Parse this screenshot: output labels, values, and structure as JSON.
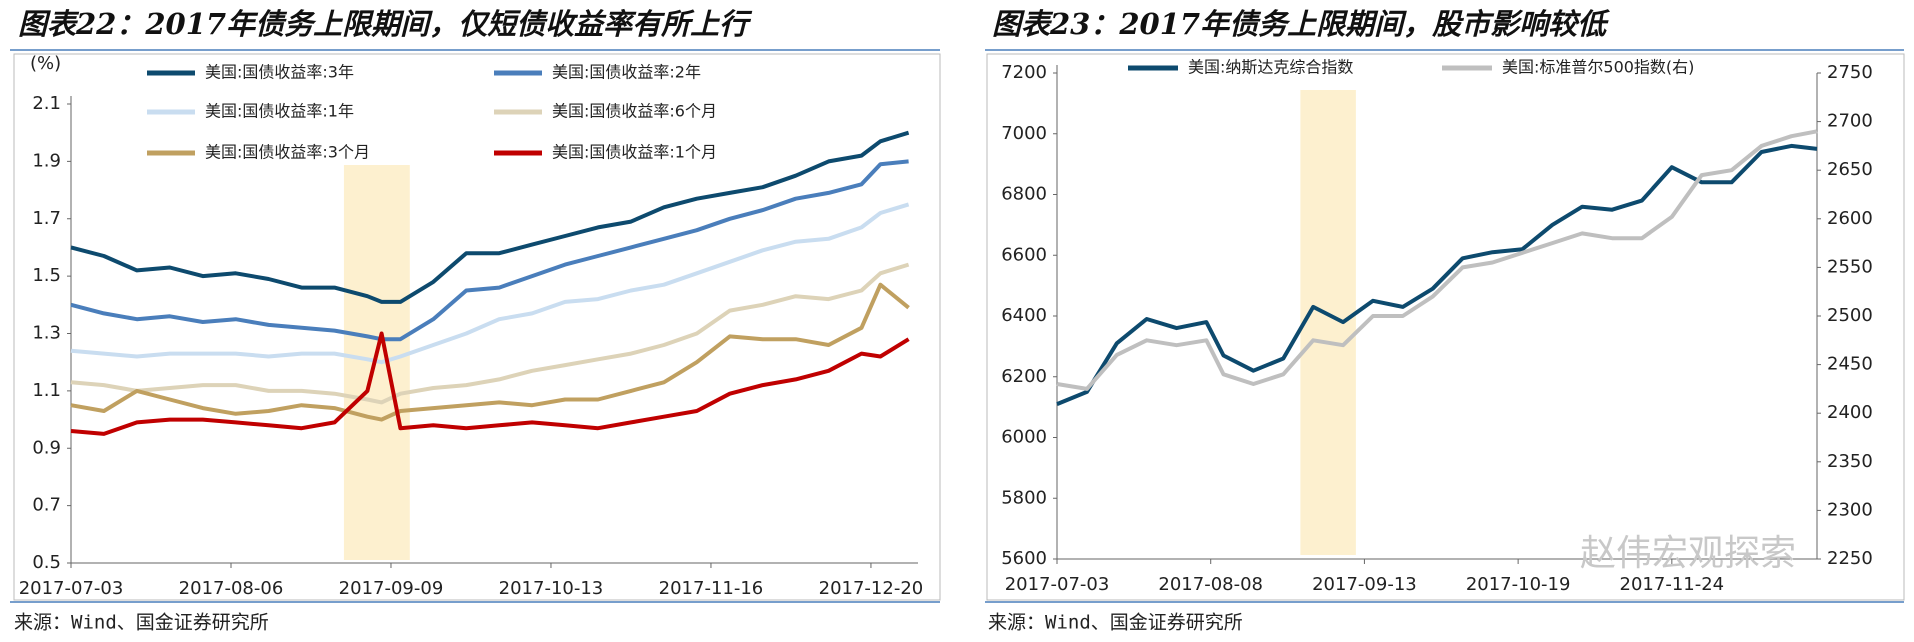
{
  "chart_data": [
    {
      "type": "line",
      "title": "图表22：2017年债务上限期间，仅短债收益率有所上行",
      "y_unit": "(%)",
      "source": "来源：Wind、国金证券研究所",
      "x": [
        "2017-07-03",
        "2017-07-10",
        "2017-07-17",
        "2017-07-24",
        "2017-07-31",
        "2017-08-07",
        "2017-08-14",
        "2017-08-21",
        "2017-08-28",
        "2017-09-04",
        "2017-09-07",
        "2017-09-11",
        "2017-09-18",
        "2017-09-25",
        "2017-10-02",
        "2017-10-09",
        "2017-10-16",
        "2017-10-23",
        "2017-10-30",
        "2017-11-06",
        "2017-11-13",
        "2017-11-20",
        "2017-11-27",
        "2017-12-04",
        "2017-12-11",
        "2017-12-18",
        "2017-12-22",
        "2017-12-28"
      ],
      "xlim": [
        "2017-07-03",
        "2017-12-30"
      ],
      "xticks": [
        "2017-07-03",
        "2017-08-06",
        "2017-09-09",
        "2017-10-13",
        "2017-11-16",
        "2017-12-20"
      ],
      "ylim": [
        0.5,
        2.1
      ],
      "yticks": [
        0.5,
        0.7,
        0.9,
        1.1,
        1.3,
        1.5,
        1.7,
        1.9,
        2.1
      ],
      "highlight": [
        "2017-08-30",
        "2017-09-13"
      ],
      "series": [
        {
          "name": "美国:国债收益率:3年",
          "color": "#0d4a6e",
          "values": [
            1.6,
            1.57,
            1.52,
            1.53,
            1.5,
            1.51,
            1.49,
            1.46,
            1.46,
            1.43,
            1.41,
            1.41,
            1.48,
            1.58,
            1.58,
            1.61,
            1.64,
            1.67,
            1.69,
            1.74,
            1.77,
            1.79,
            1.81,
            1.85,
            1.9,
            1.92,
            1.97,
            2.0
          ]
        },
        {
          "name": "美国:国债收益率:2年",
          "color": "#4a7ebb",
          "values": [
            1.4,
            1.37,
            1.35,
            1.36,
            1.34,
            1.35,
            1.33,
            1.32,
            1.31,
            1.29,
            1.28,
            1.28,
            1.35,
            1.45,
            1.46,
            1.5,
            1.54,
            1.57,
            1.6,
            1.63,
            1.66,
            1.7,
            1.73,
            1.77,
            1.79,
            1.82,
            1.89,
            1.9
          ]
        },
        {
          "name": "美国:国债收益率:1年",
          "color": "#c9ddf0",
          "values": [
            1.24,
            1.23,
            1.22,
            1.23,
            1.23,
            1.23,
            1.22,
            1.23,
            1.23,
            1.21,
            1.2,
            1.22,
            1.26,
            1.3,
            1.35,
            1.37,
            1.41,
            1.42,
            1.45,
            1.47,
            1.51,
            1.55,
            1.59,
            1.62,
            1.63,
            1.67,
            1.72,
            1.75
          ]
        },
        {
          "name": "美国:国债收益率:6个月",
          "color": "#ddd3b8",
          "values": [
            1.13,
            1.12,
            1.1,
            1.11,
            1.12,
            1.12,
            1.1,
            1.1,
            1.09,
            1.07,
            1.06,
            1.09,
            1.11,
            1.12,
            1.14,
            1.17,
            1.19,
            1.21,
            1.23,
            1.26,
            1.3,
            1.38,
            1.4,
            1.43,
            1.42,
            1.45,
            1.51,
            1.54
          ]
        },
        {
          "name": "美国:国债收益率:3个月",
          "color": "#c0a060",
          "values": [
            1.05,
            1.03,
            1.1,
            1.07,
            1.04,
            1.02,
            1.03,
            1.05,
            1.04,
            1.01,
            1.0,
            1.03,
            1.04,
            1.05,
            1.06,
            1.05,
            1.07,
            1.07,
            1.1,
            1.13,
            1.2,
            1.29,
            1.28,
            1.28,
            1.26,
            1.32,
            1.47,
            1.39
          ]
        },
        {
          "name": "美国:国债收益率:1个月",
          "color": "#c00000",
          "values": [
            0.96,
            0.95,
            0.99,
            1.0,
            1.0,
            0.99,
            0.98,
            0.97,
            0.99,
            1.1,
            1.3,
            0.97,
            0.98,
            0.97,
            0.98,
            0.99,
            0.98,
            0.97,
            0.99,
            1.01,
            1.03,
            1.09,
            1.12,
            1.14,
            1.17,
            1.23,
            1.22,
            1.28
          ]
        }
      ]
    },
    {
      "type": "line",
      "title": "图表23：2017年债务上限期间，股市影响较低",
      "source": "来源：Wind、国金证券研究所",
      "watermark": "赵伟宏观探索",
      "x": [
        "2017-07-03",
        "2017-07-10",
        "2017-07-17",
        "2017-07-24",
        "2017-07-31",
        "2017-08-07",
        "2017-08-11",
        "2017-08-18",
        "2017-08-25",
        "2017-09-01",
        "2017-09-08",
        "2017-09-15",
        "2017-09-22",
        "2017-09-29",
        "2017-10-06",
        "2017-10-13",
        "2017-10-20",
        "2017-10-27",
        "2017-11-03",
        "2017-11-10",
        "2017-11-17",
        "2017-11-24",
        "2017-12-01",
        "2017-12-08",
        "2017-12-15",
        "2017-12-22",
        "2017-12-28"
      ],
      "xlim": [
        "2017-07-03",
        "2017-12-28"
      ],
      "xticks": [
        "2017-07-03",
        "2017-08-08",
        "2017-09-13",
        "2017-10-19",
        "2017-11-24"
      ],
      "ylim": [
        5600,
        7200
      ],
      "yticks": [
        5600,
        5800,
        6000,
        6200,
        6400,
        6600,
        6800,
        7000,
        7200
      ],
      "y2lim": [
        2250,
        2750
      ],
      "y2ticks": [
        2250,
        2300,
        2350,
        2400,
        2450,
        2500,
        2550,
        2600,
        2650,
        2700,
        2750
      ],
      "highlight": [
        "2017-08-29",
        "2017-09-11"
      ],
      "series": [
        {
          "name": "美国:纳斯达克综合指数",
          "color": "#0d4a6e",
          "values": [
            6110,
            6150,
            6310,
            6390,
            6360,
            6380,
            6270,
            6220,
            6260,
            6430,
            6380,
            6450,
            6430,
            6490,
            6590,
            6610,
            6620,
            6700,
            6760,
            6750,
            6780,
            6890,
            6840,
            6840,
            6940,
            6960,
            6950
          ]
        },
        {
          "name": "美国:标准普尔500指数(右)",
          "color": "#bfbfbf",
          "axis": "y2",
          "values": [
            2430,
            2425,
            2460,
            2475,
            2470,
            2475,
            2440,
            2430,
            2440,
            2475,
            2470,
            2500,
            2500,
            2520,
            2550,
            2555,
            2565,
            2575,
            2585,
            2580,
            2580,
            2602,
            2645,
            2650,
            2675,
            2685,
            2690
          ]
        }
      ]
    }
  ]
}
